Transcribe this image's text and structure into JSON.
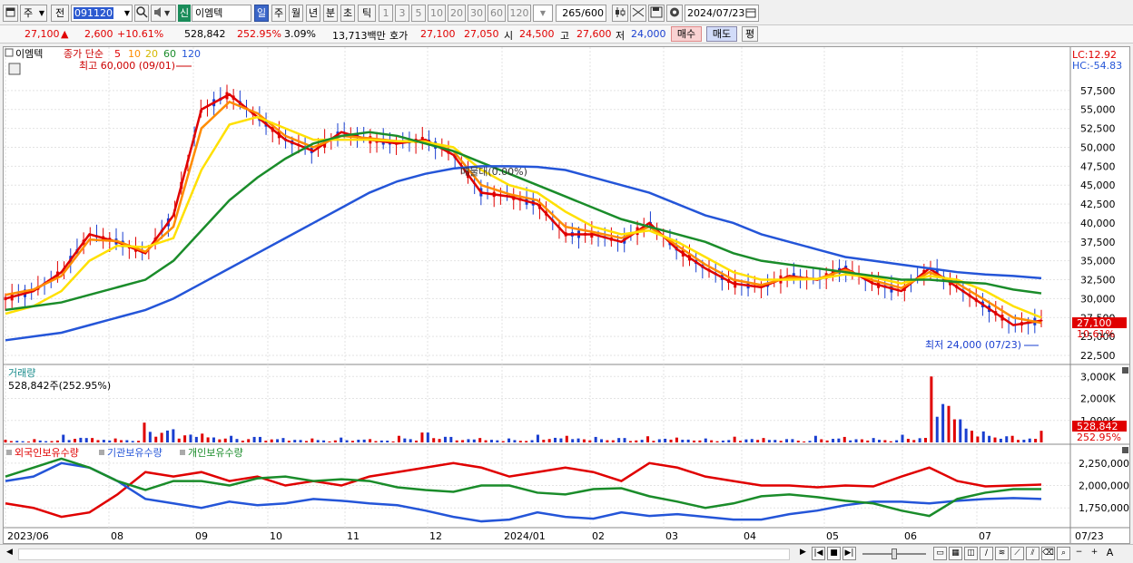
{
  "toolbar": {
    "period_type": "주",
    "prev_label": "전",
    "stock_code": "091120",
    "credit_label": "신",
    "stock_name": "이엠텍",
    "period_buttons": [
      "일",
      "주",
      "월",
      "년",
      "분",
      "초",
      "틱"
    ],
    "active_period": "일",
    "interval_buttons": [
      "1",
      "3",
      "5",
      "10",
      "20",
      "30",
      "60",
      "120"
    ],
    "count_value": "265",
    "count_total": "/600",
    "date_value": "2024/07/23"
  },
  "info": {
    "price": "27,100",
    "up_arrow": "▲",
    "change": "2,600",
    "change_pct": "+10.61%",
    "volume": "528,842",
    "volume_pct": "252.95%",
    "turnover_pct": "3.09%",
    "amount": "13,713백만",
    "quote_label": "호가",
    "ask": "27,100",
    "bid": "27,050",
    "open_label": "시",
    "open": "24,500",
    "high_label": "고",
    "high": "27,600",
    "low_label": "저",
    "low": "24,000",
    "buy_label": "매수",
    "sell_label": "매도",
    "eval_label": "평"
  },
  "price_panel": {
    "stock_name": "이엠텍",
    "legend_prefix": "종가 단순",
    "ma_periods": [
      "5",
      "10",
      "20",
      "60",
      "120"
    ],
    "ma_colors": [
      "#e00000",
      "#ff8c00",
      "#ffe000",
      "#1a8c2a",
      "#2455d8"
    ],
    "high_annotation": "최고 60,000 (09/01)",
    "low_annotation": "최저 24,000 (07/23)",
    "crosshair_annotation": "매물대(0.00%)",
    "lc_label": "LC:12.92",
    "hc_label": "HC:-54.83",
    "current_price_tag": "27,100",
    "current_pct_tag": "10.61%",
    "y_ticks": [
      "57,500",
      "55,000",
      "52,500",
      "50,000",
      "47,500",
      "45,000",
      "42,500",
      "40,000",
      "37,500",
      "35,000",
      "32,500",
      "30,000",
      "27,500",
      "25,000",
      "22,500"
    ]
  },
  "volume_panel": {
    "title": "거래량",
    "readout": "528,842주(252.95%)",
    "y_ticks": [
      "3,000K",
      "2,000K",
      "1,000K"
    ],
    "volume_tag": "528,842",
    "pct_tag": "252.95%"
  },
  "holdings_panel": {
    "legend": [
      "외국인보유수량",
      "기관보유수량",
      "개인보유수량"
    ],
    "legend_colors": [
      "#e00000",
      "#2455d8",
      "#1a8c2a"
    ],
    "y_ticks": [
      "2,250,000",
      "2,000,000",
      "1,750,000"
    ]
  },
  "x_axis": {
    "labels": [
      "2023/06",
      "08",
      "09",
      "10",
      "11",
      "12",
      "2024/01",
      "02",
      "03",
      "04",
      "05",
      "06",
      "07"
    ],
    "right_label": "07/23"
  },
  "chart_data": {
    "type": "line",
    "x_range": [
      "2023/06",
      "2024/07/23"
    ],
    "price_ylim": [
      22500,
      60000
    ],
    "series": [
      {
        "name": "5",
        "values": [
          30000,
          31000,
          33500,
          38500,
          37500,
          36000,
          41000,
          55000,
          57000,
          54000,
          51000,
          49500,
          52000,
          51000,
          50500,
          51000,
          49000,
          44000,
          43500,
          42500,
          38500,
          38500,
          37500,
          40000,
          36500,
          34000,
          32000,
          31500,
          33000,
          32500,
          34000,
          32000,
          31000,
          34000,
          31500,
          29000,
          26500,
          27100
        ]
      },
      {
        "name": "10",
        "values": [
          30500,
          31200,
          33000,
          37800,
          37600,
          36200,
          39500,
          52500,
          56000,
          54500,
          51500,
          50000,
          51500,
          51200,
          50800,
          50800,
          49500,
          45000,
          43800,
          43000,
          39500,
          38800,
          38000,
          39500,
          37000,
          34500,
          32500,
          31800,
          32800,
          32600,
          33800,
          32400,
          31400,
          33500,
          32000,
          29800,
          27500,
          26800
        ]
      },
      {
        "name": "20",
        "values": [
          28000,
          29000,
          31000,
          35000,
          37000,
          36800,
          38000,
          47000,
          53000,
          54000,
          52500,
          51000,
          51000,
          51000,
          50800,
          50700,
          50000,
          47000,
          45000,
          44000,
          41500,
          39500,
          38500,
          39000,
          37500,
          35500,
          33500,
          32500,
          32500,
          32600,
          33200,
          32800,
          32000,
          33000,
          32500,
          31000,
          29000,
          27500
        ]
      },
      {
        "name": "60",
        "values": [
          28500,
          29000,
          29500,
          30500,
          31500,
          32500,
          35000,
          39000,
          43000,
          46000,
          48500,
          50500,
          51500,
          52000,
          51500,
          50500,
          49500,
          48000,
          46500,
          45000,
          43500,
          42000,
          40500,
          39500,
          38500,
          37500,
          36000,
          35000,
          34500,
          34000,
          33500,
          33000,
          32500,
          32500,
          32200,
          32000,
          31200,
          30700
        ]
      },
      {
        "name": "120",
        "values": [
          24500,
          25000,
          25500,
          26500,
          27500,
          28500,
          30000,
          32000,
          34000,
          36000,
          38000,
          40000,
          42000,
          44000,
          45500,
          46500,
          47200,
          47500,
          47500,
          47400,
          47000,
          46000,
          45000,
          44000,
          42500,
          41000,
          40000,
          38500,
          37500,
          36500,
          35500,
          35000,
          34500,
          34000,
          33500,
          33200,
          33000,
          32700
        ]
      }
    ],
    "volume_k": [
      120,
      150,
      350,
      200,
      180,
      900,
      600,
      400,
      300,
      250,
      200,
      180,
      220,
      150,
      300,
      450,
      250,
      200,
      180,
      350,
      300,
      250,
      200,
      280,
      220,
      180,
      260,
      200,
      150,
      300,
      250,
      200,
      350,
      3000,
      1050,
      500,
      300,
      529
    ],
    "holdings_ylim": [
      1550000,
      2400000
    ],
    "holdings": [
      {
        "name": "외국인보유수량",
        "values": [
          1800000,
          1750000,
          1650000,
          1700000,
          1900000,
          2150000,
          2100000,
          2150000,
          2050000,
          2100000,
          2000000,
          2050000,
          2000000,
          2100000,
          2150000,
          2200000,
          2250000,
          2200000,
          2100000,
          2150000,
          2200000,
          2150000,
          2050000,
          2250000,
          2200000,
          2100000,
          2050000,
          2000000,
          2000000,
          1980000,
          2000000,
          1990000,
          2100000,
          2200000,
          2050000,
          1990000,
          2000000,
          2010000
        ]
      },
      {
        "name": "기관보유수량",
        "values": [
          2050000,
          2100000,
          2250000,
          2200000,
          2050000,
          1850000,
          1800000,
          1750000,
          1820000,
          1780000,
          1800000,
          1850000,
          1830000,
          1800000,
          1780000,
          1720000,
          1650000,
          1600000,
          1620000,
          1700000,
          1650000,
          1630000,
          1700000,
          1660000,
          1680000,
          1650000,
          1620000,
          1620000,
          1680000,
          1720000,
          1780000,
          1820000,
          1820000,
          1800000,
          1830000,
          1850000,
          1860000,
          1850000
        ]
      },
      {
        "name": "개인보유수량",
        "values": [
          2100000,
          2200000,
          2300000,
          2200000,
          2050000,
          1950000,
          2050000,
          2050000,
          2000000,
          2080000,
          2100000,
          2050000,
          2070000,
          2050000,
          1980000,
          1950000,
          1930000,
          2000000,
          2000000,
          1920000,
          1900000,
          1960000,
          1970000,
          1880000,
          1820000,
          1750000,
          1800000,
          1880000,
          1900000,
          1870000,
          1830000,
          1800000,
          1720000,
          1660000,
          1850000,
          1920000,
          1960000,
          1960000
        ]
      }
    ]
  }
}
